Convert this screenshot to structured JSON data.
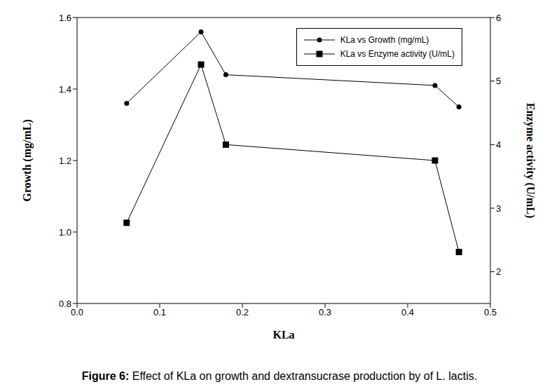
{
  "chart_data": {
    "type": "line",
    "caption": "Figure 6: Effect of KLa on growth and dextransucrase production by of L. lactis.",
    "x_label": "KLa",
    "y_label": "Growth (mg/mL)",
    "y2_label": "Enzyme activity (U/mL)",
    "x": [
      0.06,
      0.15,
      0.18,
      0.433,
      0.462
    ],
    "series": [
      {
        "name": "KLa vs Growth (mg/mL)",
        "color": "#000000",
        "marker": "circle",
        "values": [
          1.36,
          1.56,
          1.44,
          1.41,
          1.35
        ]
      },
      {
        "name": "KLa vs Enzyme activity (U/mL)",
        "color": "#000000",
        "marker": "square",
        "axis": "y2",
        "values": [
          2.77,
          5.26,
          4.0,
          3.75,
          2.31
        ]
      }
    ],
    "xlim": [
      0,
      0.5
    ],
    "xticks": [
      {
        "value": 0,
        "label": "0.0"
      },
      0.1,
      0.2,
      0.3,
      0.4,
      0.5
    ],
    "ylim": [
      0.8,
      1.6
    ],
    "yticks": [
      0.8,
      {
        "value": 1.0,
        "label": "1.0"
      },
      1.2,
      1.4,
      1.6
    ],
    "y2lim": [
      1.5,
      6
    ],
    "y2ticks": [
      2,
      3,
      4,
      5,
      6
    ],
    "legend": "upper right",
    "grid": false
  }
}
